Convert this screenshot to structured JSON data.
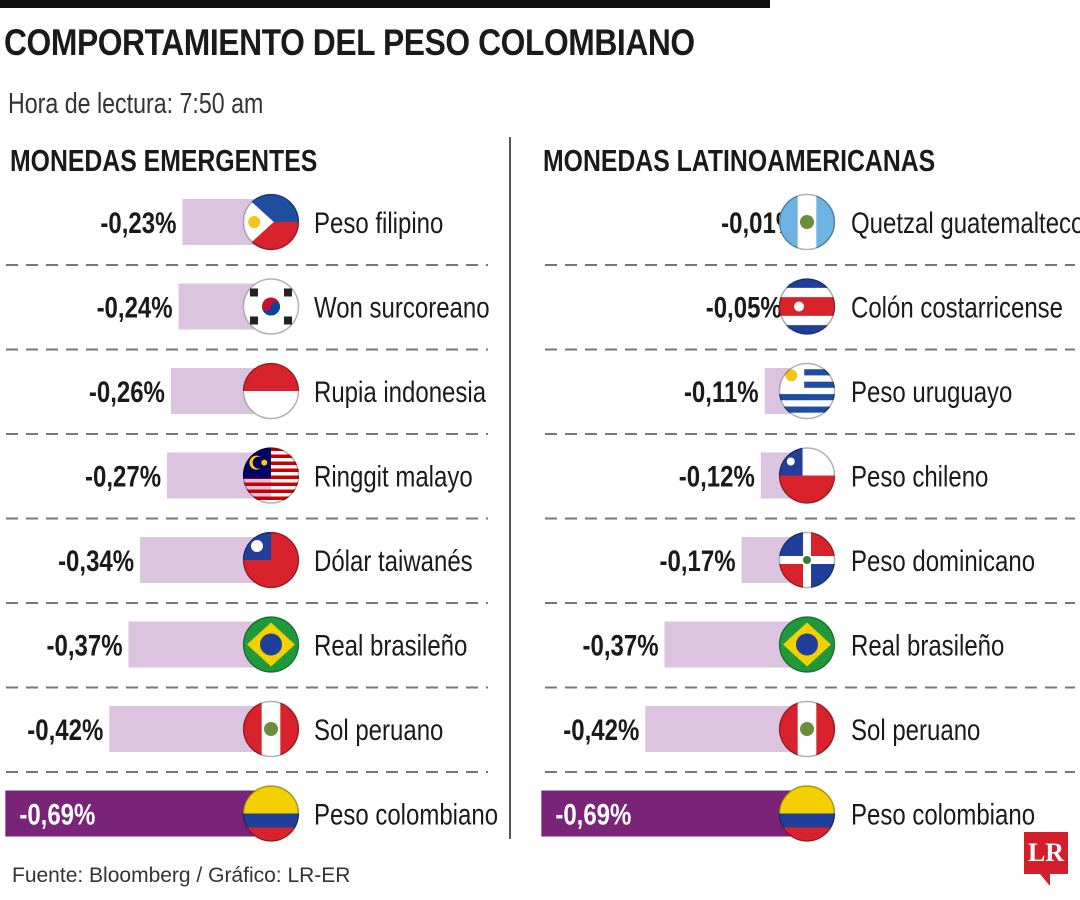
{
  "title": "COMPORTAMIENTO DEL PESO COLOMBIANO",
  "subtitle": "Hora de lectura: 7:50 am",
  "footer": "Fuente: Bloomberg / Gráfico: LR-ER",
  "logo": "LR",
  "colors": {
    "bar": "#dcc3df",
    "highlight": "#7a2479",
    "divider": "#777777"
  },
  "chart_data": [
    {
      "type": "bar",
      "title": "MONEDAS EMERGENTES",
      "categories": [
        "Peso filipino",
        "Won surcoreano",
        "Rupia indonesia",
        "Ringgit malayo",
        "Dólar taiwanés",
        "Real brasileño",
        "Sol peruano",
        "Peso colombiano"
      ],
      "flags": [
        "ph",
        "kr",
        "id",
        "my",
        "tw",
        "br",
        "pe",
        "co"
      ],
      "values": [
        -0.23,
        -0.24,
        -0.26,
        -0.27,
        -0.34,
        -0.37,
        -0.42,
        -0.69
      ],
      "labels": [
        "-0,23%",
        "-0,24%",
        "-0,26%",
        "-0,27%",
        "-0,34%",
        "-0,37%",
        "-0,42%",
        "-0,69%"
      ],
      "highlight": "Peso colombiano"
    },
    {
      "type": "bar",
      "title": "MONEDAS LATINOAMERICANAS",
      "categories": [
        "Quetzal guatemalteco",
        "Colón costarricense",
        "Peso uruguayo",
        "Peso chileno",
        "Peso dominicano",
        "Real brasileño",
        "Sol peruano",
        "Peso colombiano"
      ],
      "flags": [
        "gt",
        "cr",
        "uy",
        "cl",
        "do",
        "br",
        "pe",
        "co"
      ],
      "values": [
        -0.01,
        -0.05,
        -0.11,
        -0.12,
        -0.17,
        -0.37,
        -0.42,
        -0.69
      ],
      "labels": [
        "-0,01%",
        "-0,05%",
        "-0,11%",
        "-0,12%",
        "-0,17%",
        "-0,37%",
        "-0,42%",
        "-0,69%"
      ],
      "highlight": "Peso colombiano"
    }
  ]
}
